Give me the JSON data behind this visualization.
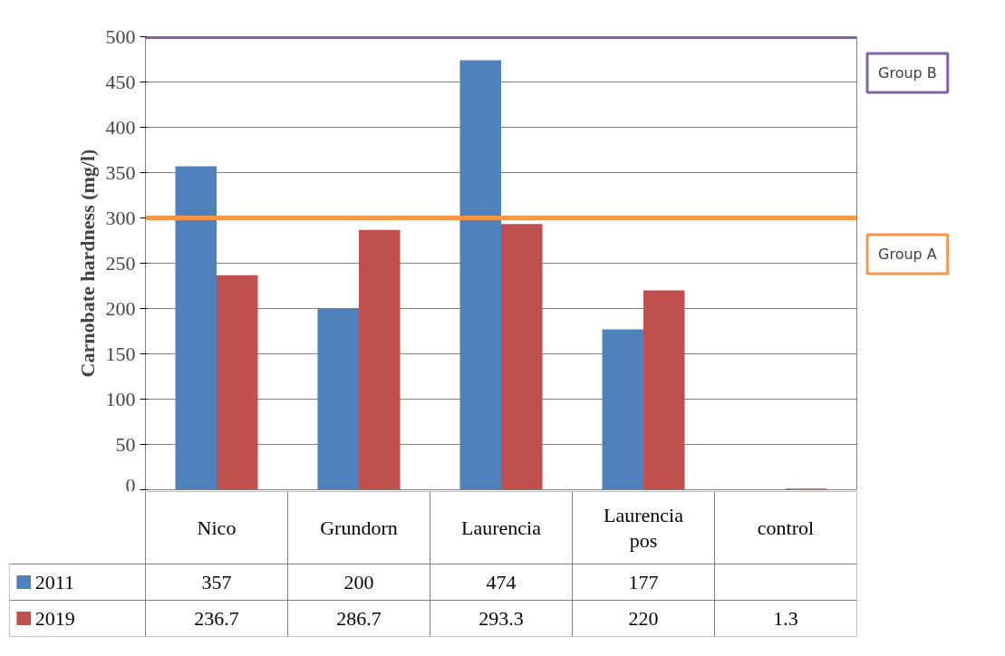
{
  "chart_data": {
    "type": "bar",
    "ylabel": "Carnobate hardness (mg/l)",
    "categories": [
      "Nico",
      "Grundorn",
      "Laurencia",
      "Laurencia pos",
      "control"
    ],
    "series": [
      {
        "name": "2011",
        "color": "#4f81bd",
        "values": [
          357,
          200,
          474,
          177,
          null
        ]
      },
      {
        "name": "2019",
        "color": "#c0504d",
        "values": [
          236.7,
          286.7,
          293.3,
          220,
          1.3
        ]
      }
    ],
    "ylim": [
      0,
      500
    ],
    "yticks": [
      0,
      50,
      100,
      150,
      200,
      250,
      300,
      350,
      400,
      450,
      500
    ],
    "grid": "y",
    "legend": "bottom",
    "data_labels": true,
    "ref_lines": [
      {
        "axis": "y",
        "value": 500,
        "label": "Group B",
        "color": "#8064a2"
      },
      {
        "axis": "y",
        "value": 300,
        "label": "Group A",
        "color": "#f79646"
      }
    ]
  }
}
